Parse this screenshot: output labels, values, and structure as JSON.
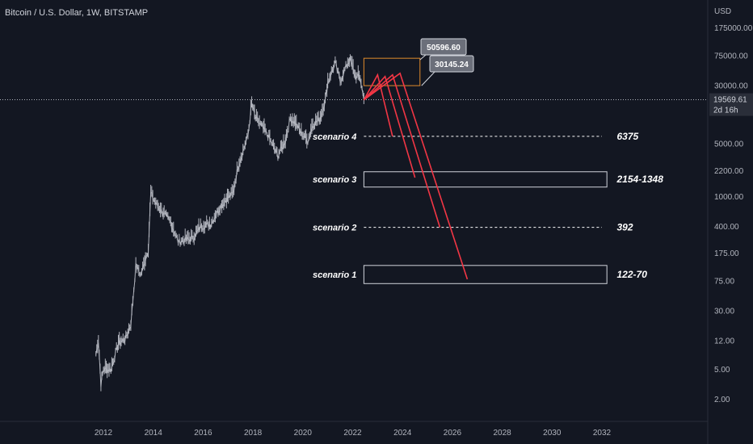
{
  "header": {
    "symbol": "Bitcoin / U.S. Dollar, 1W, BITSTAMP",
    "currency": "USD"
  },
  "current_price": {
    "value": "19569.61",
    "countdown": "2d 16h"
  },
  "colors": {
    "background": "#131722",
    "candle": "#b2b5be",
    "projection": "#f23645",
    "range_box": "#e08b2c",
    "callout": "#6b6f7a",
    "scenario_box": "#d1d4dc"
  },
  "callouts": [
    {
      "label": "50596.60"
    },
    {
      "label": "30145.24"
    }
  ],
  "chart_data": {
    "type": "line",
    "yscale": "log",
    "title": "Bitcoin / U.S. Dollar, 1W, BITSTAMP",
    "ylabel": "USD",
    "y_ticks": [
      "175000.00",
      "75000.00",
      "30000.00",
      "5000.00",
      "2200.00",
      "1000.00",
      "400.00",
      "175.00",
      "75.00",
      "30.00",
      "12.00",
      "5.00",
      "2.00"
    ],
    "x_ticks": [
      "2012",
      "2014",
      "2016",
      "2018",
      "2020",
      "2022",
      "2024",
      "2026",
      "2028",
      "2030",
      "2032"
    ],
    "price_series": {
      "x": [
        2011.7,
        2011.8,
        2011.9,
        2012.0,
        2012.3,
        2012.6,
        2012.9,
        2013.1,
        2013.3,
        2013.5,
        2013.8,
        2013.9,
        2014.1,
        2014.4,
        2014.7,
        2015.0,
        2015.2,
        2015.6,
        2015.9,
        2016.3,
        2016.6,
        2016.9,
        2017.2,
        2017.4,
        2017.6,
        2017.8,
        2017.95,
        2018.1,
        2018.3,
        2018.6,
        2018.9,
        2019.0,
        2019.3,
        2019.5,
        2019.7,
        2019.9,
        2020.2,
        2020.4,
        2020.7,
        2020.9,
        2021.0,
        2021.3,
        2021.5,
        2021.8,
        2021.9,
        2022.1,
        2022.3,
        2022.45
      ],
      "y": [
        8,
        12,
        3.2,
        5,
        5,
        11,
        13,
        20,
        120,
        90,
        200,
        1100,
        800,
        600,
        450,
        250,
        260,
        280,
        400,
        430,
        650,
        900,
        1100,
        2500,
        4000,
        6500,
        17000,
        11000,
        9000,
        6500,
        4000,
        3500,
        5500,
        11000,
        9500,
        7200,
        5500,
        9000,
        11000,
        19000,
        33000,
        60000,
        34000,
        60000,
        66000,
        40000,
        38000,
        19500
      ]
    },
    "scenarios": [
      {
        "name": "scenario 4",
        "value": "6375",
        "price": 6375,
        "kind": "line"
      },
      {
        "name": "scenario 3",
        "value": "2154-1348",
        "low": 1348,
        "high": 2154,
        "kind": "box"
      },
      {
        "name": "scenario 2",
        "value": "392",
        "price": 392,
        "kind": "line"
      },
      {
        "name": "scenario 1",
        "value": "122-70",
        "low": 70,
        "high": 122,
        "kind": "box"
      }
    ],
    "range_box": {
      "x_start": 2022.45,
      "x_end": 2024.7,
      "low": 30145.24,
      "high": 50596.6
    },
    "projection_lines": [
      {
        "peak": [
          2023.0,
          42000
        ],
        "end": [
          2023.6,
          6375
        ]
      },
      {
        "peak": [
          2023.3,
          40000
        ],
        "end": [
          2024.5,
          1800
        ]
      },
      {
        "peak": [
          2023.6,
          42000
        ],
        "end": [
          2025.5,
          392
        ]
      },
      {
        "peak": [
          2023.9,
          44000
        ],
        "end": [
          2026.6,
          80
        ]
      }
    ],
    "projection_origin": [
      2022.45,
      19500
    ]
  }
}
